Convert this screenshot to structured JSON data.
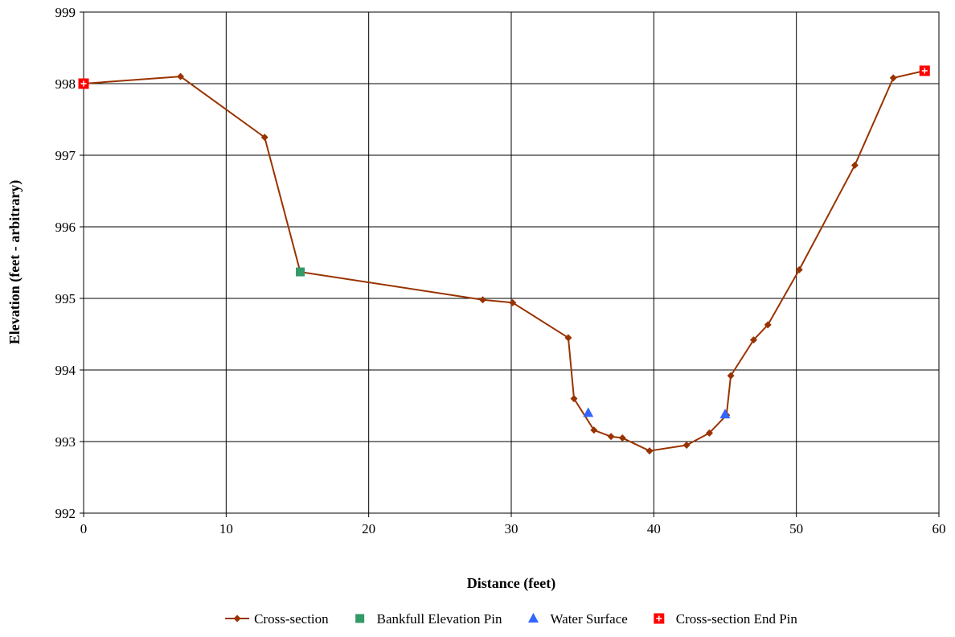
{
  "chart_data": {
    "type": "scatter",
    "title": "",
    "xlabel": "Distance (feet)",
    "ylabel": "Elevation (feet - arbitrary)",
    "xlim": [
      0,
      60
    ],
    "ylim": [
      992,
      999
    ],
    "xticks": [
      0,
      10,
      20,
      30,
      40,
      50,
      60
    ],
    "yticks": [
      992,
      993,
      994,
      995,
      996,
      997,
      998,
      999
    ],
    "grid": true,
    "legend_position": "bottom",
    "series": [
      {
        "name": "Cross-section",
        "kind": "line-with-diamond-markers",
        "color": "#993300",
        "x": [
          0,
          6.8,
          12.7,
          15.2,
          28,
          30.1,
          34,
          34.4,
          35.8,
          37,
          37.8,
          39.7,
          42.3,
          43.9,
          45.1,
          45.4,
          47,
          48,
          50.2,
          54.1,
          56.8,
          59
        ],
        "y": [
          998.0,
          998.1,
          997.25,
          995.37,
          994.98,
          994.94,
          994.45,
          993.6,
          993.16,
          993.07,
          993.05,
          992.87,
          992.95,
          993.12,
          993.37,
          993.92,
          994.42,
          994.63,
          995.4,
          996.86,
          998.08,
          998.18
        ]
      },
      {
        "name": "Bankfull Elevation Pin",
        "kind": "square-marker",
        "color": "#339966",
        "x": [
          15.2
        ],
        "y": [
          995.37
        ]
      },
      {
        "name": "Water Surface",
        "kind": "triangle-marker",
        "color": "#3366ff",
        "x": [
          35.4,
          45
        ],
        "y": [
          993.4,
          993.38
        ]
      },
      {
        "name": "Cross-section End Pin",
        "kind": "plus-square-marker",
        "color": "#ff0000",
        "x": [
          0,
          59
        ],
        "y": [
          998.0,
          998.18
        ]
      }
    ]
  }
}
